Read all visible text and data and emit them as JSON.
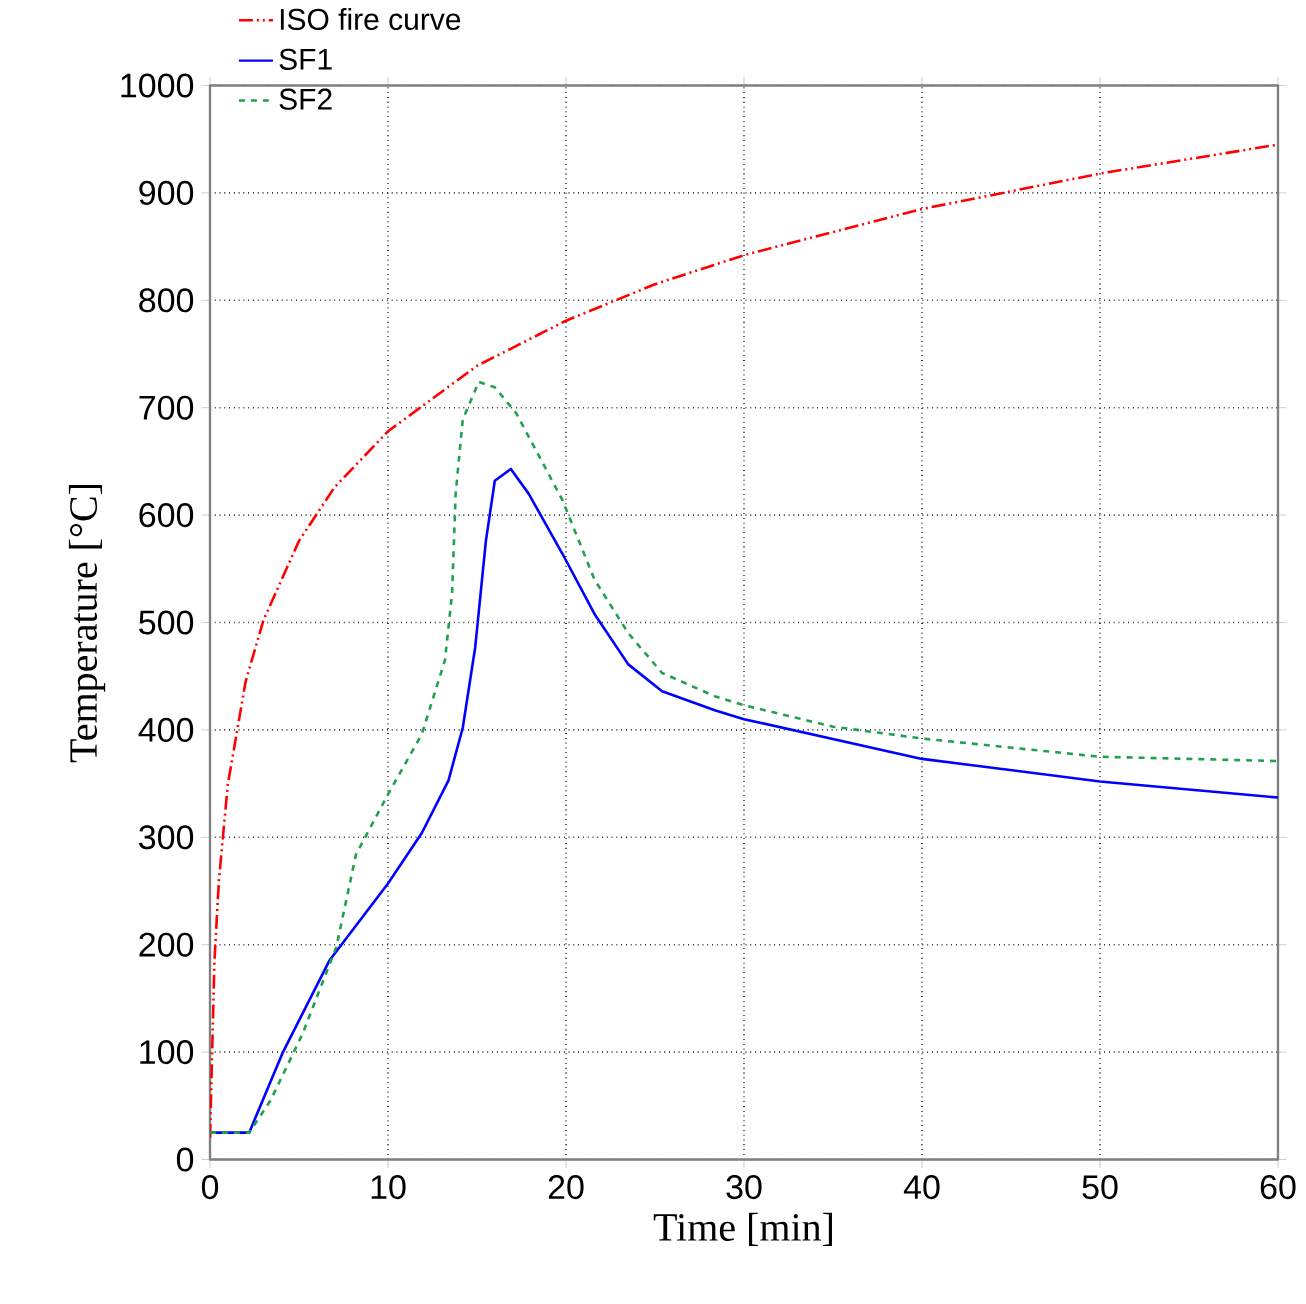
{
  "chart_data": {
    "type": "line",
    "xlabel": "Time [min]",
    "ylabel": "Temperature [°C]",
    "xlim": [
      0,
      60
    ],
    "ylim": [
      0,
      1000
    ],
    "xticks": [
      0,
      10,
      20,
      30,
      40,
      50,
      60
    ],
    "yticks": [
      0,
      100,
      200,
      300,
      400,
      500,
      600,
      700,
      800,
      900,
      1000
    ],
    "grid": true,
    "legend": "top left",
    "marker": "none",
    "series": [
      {
        "name": "ISO fire curve",
        "color": "#ff0000",
        "line_style": "dashdotdot",
        "x": [
          0,
          0.25,
          0.5,
          1,
          2,
          3,
          5,
          7,
          10,
          15,
          20,
          25,
          30,
          40,
          50,
          60
        ],
        "values": [
          20,
          185,
          260,
          349,
          445,
          502,
          576,
          626,
          678,
          739,
          781,
          815,
          842,
          885,
          918,
          945
        ]
      },
      {
        "name": "SF1",
        "color": "#0000ff",
        "line_style": "solid",
        "x": [
          0,
          2.2,
          4.1,
          6.7,
          10,
          11.9,
          13.4,
          14.2,
          14.9,
          15.5,
          16,
          16.9,
          17.9,
          19.8,
          21.6,
          23.5,
          25.4,
          28.4,
          30,
          40,
          50,
          60
        ],
        "values": [
          25,
          25,
          100,
          185,
          257,
          304,
          353,
          402,
          477,
          576,
          632,
          643,
          620,
          564,
          508,
          461,
          436,
          418,
          410,
          373,
          352,
          337
        ]
      },
      {
        "name": "SF2",
        "color": "#22a050",
        "line_style": "dashed",
        "x": [
          0,
          2.2,
          3.4,
          5.2,
          7.1,
          8.2,
          10,
          11.9,
          13.2,
          13.6,
          13.8,
          14.2,
          15.1,
          16,
          17.2,
          19.8,
          21.6,
          23.5,
          25.4,
          28.4,
          30,
          35,
          40,
          50,
          60
        ],
        "values": [
          25,
          25,
          55,
          117,
          198,
          284,
          340,
          396,
          465,
          527,
          620,
          689,
          724,
          719,
          695,
          614,
          540,
          490,
          453,
          431,
          423,
          403,
          392,
          375,
          371
        ]
      }
    ]
  }
}
